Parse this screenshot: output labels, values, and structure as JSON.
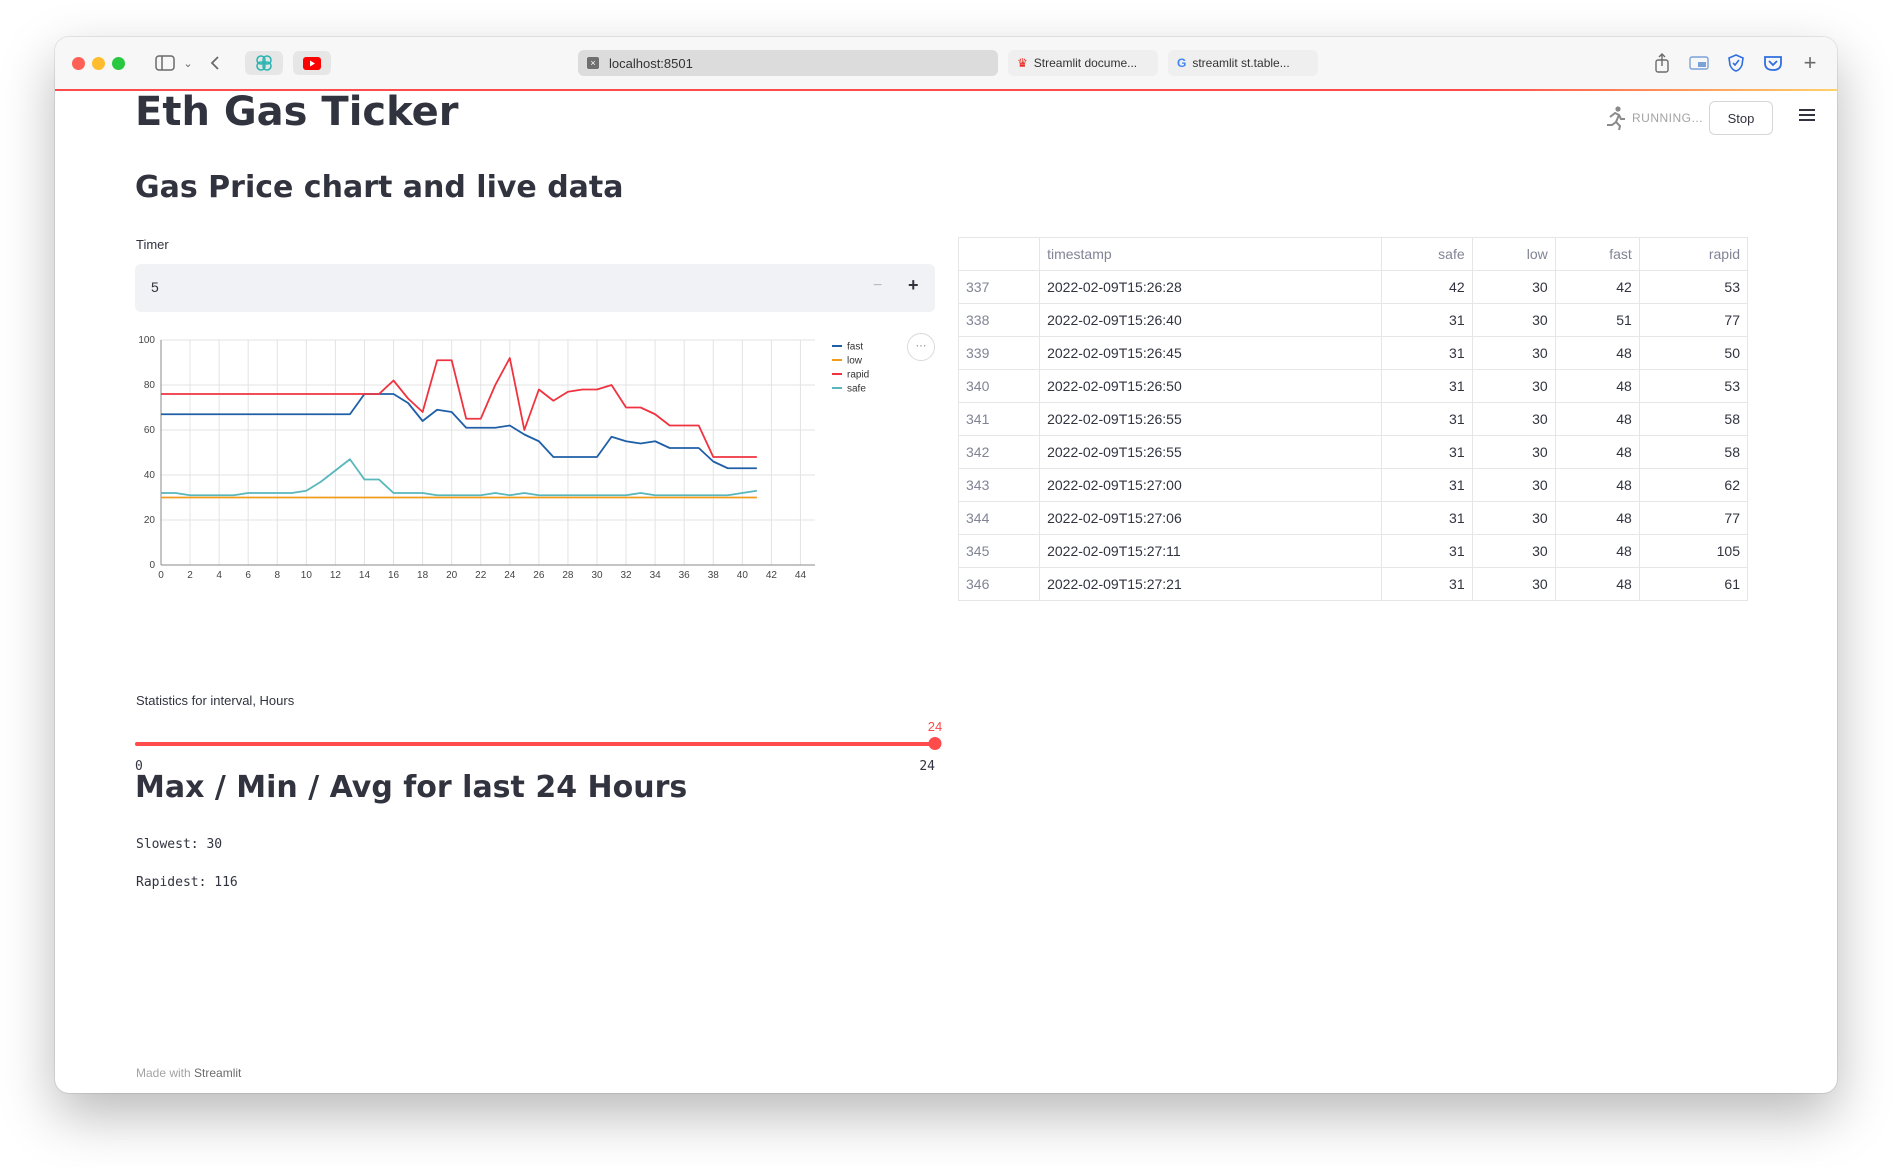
{
  "browser": {
    "url": "localhost:8501",
    "tabs": [
      {
        "label": "Streamlit docume..."
      },
      {
        "label": "streamlit st.table..."
      }
    ]
  },
  "app": {
    "title": "Eth Gas Ticker",
    "status": "RUNNING...",
    "stop_label": "Stop",
    "subtitle": "Gas Price chart and live data",
    "timer": {
      "label": "Timer",
      "value": "5",
      "minus": "−",
      "plus": "+"
    },
    "slider": {
      "label": "Statistics for interval, Hours",
      "value": "24",
      "min": "0",
      "max": "24",
      "fill": 1.0
    },
    "stats_heading": "Max / Min / Avg for last 24 Hours",
    "slowest": "Slowest: 30",
    "rapidest": "Rapidest: 116",
    "footer_prefix": "Made with",
    "footer_brand": "Streamlit",
    "accent": "#ff4b4b"
  },
  "table": {
    "columns": [
      "",
      "timestamp",
      "safe",
      "low",
      "fast",
      "rapid"
    ],
    "rows": [
      [
        "337",
        "2022-02-09T15:26:28",
        "42",
        "30",
        "42",
        "53"
      ],
      [
        "338",
        "2022-02-09T15:26:40",
        "31",
        "30",
        "51",
        "77"
      ],
      [
        "339",
        "2022-02-09T15:26:45",
        "31",
        "30",
        "48",
        "50"
      ],
      [
        "340",
        "2022-02-09T15:26:50",
        "31",
        "30",
        "48",
        "53"
      ],
      [
        "341",
        "2022-02-09T15:26:55",
        "31",
        "30",
        "48",
        "58"
      ],
      [
        "342",
        "2022-02-09T15:26:55",
        "31",
        "30",
        "48",
        "58"
      ],
      [
        "343",
        "2022-02-09T15:27:00",
        "31",
        "30",
        "48",
        "62"
      ],
      [
        "344",
        "2022-02-09T15:27:06",
        "31",
        "30",
        "48",
        "77"
      ],
      [
        "345",
        "2022-02-09T15:27:11",
        "31",
        "30",
        "48",
        "105"
      ],
      [
        "346",
        "2022-02-09T15:27:21",
        "31",
        "30",
        "48",
        "61"
      ]
    ]
  },
  "chart_data": {
    "type": "line",
    "xlim": [
      0,
      45
    ],
    "ylim": [
      0,
      100
    ],
    "xticks": [
      0,
      2,
      4,
      6,
      8,
      10,
      12,
      14,
      16,
      18,
      20,
      22,
      24,
      26,
      28,
      30,
      32,
      34,
      36,
      38,
      40,
      42,
      44
    ],
    "yticks": [
      0,
      20,
      40,
      60,
      80,
      100
    ],
    "grid": true,
    "legend_position": "top-right",
    "x": [
      0,
      1,
      2,
      3,
      4,
      5,
      6,
      7,
      8,
      9,
      10,
      11,
      12,
      13,
      14,
      15,
      16,
      17,
      18,
      19,
      20,
      21,
      22,
      23,
      24,
      25,
      26,
      27,
      28,
      29,
      30,
      31,
      32,
      33,
      34,
      35,
      36,
      37,
      38,
      39,
      40,
      41
    ],
    "series": [
      {
        "name": "fast",
        "color": "#1f5fa8",
        "values": [
          67,
          67,
          67,
          67,
          67,
          67,
          67,
          67,
          67,
          67,
          67,
          67,
          67,
          67,
          76,
          76,
          76,
          72,
          64,
          69,
          68,
          61,
          61,
          61,
          62,
          58,
          55,
          48,
          48,
          48,
          48,
          57,
          55,
          54,
          55,
          52,
          52,
          52,
          46,
          43,
          43,
          43
        ]
      },
      {
        "name": "low",
        "color": "#f29b1d",
        "values": [
          30,
          30,
          30,
          30,
          30,
          30,
          30,
          30,
          30,
          30,
          30,
          30,
          30,
          30,
          30,
          30,
          30,
          30,
          30,
          30,
          30,
          30,
          30,
          30,
          30,
          30,
          30,
          30,
          30,
          30,
          30,
          30,
          30,
          30,
          30,
          30,
          30,
          30,
          30,
          30,
          30,
          30
        ]
      },
      {
        "name": "rapid",
        "color": "#ef3440",
        "values": [
          76,
          76,
          76,
          76,
          76,
          76,
          76,
          76,
          76,
          76,
          76,
          76,
          76,
          76,
          76,
          76,
          82,
          74,
          68,
          91,
          91,
          65,
          65,
          80,
          92,
          60,
          78,
          73,
          77,
          78,
          78,
          80,
          70,
          70,
          67,
          62,
          62,
          62,
          48,
          48,
          48,
          48
        ]
      },
      {
        "name": "safe",
        "color": "#58b7bd",
        "values": [
          32,
          32,
          31,
          31,
          31,
          31,
          32,
          32,
          32,
          32,
          33,
          37,
          42,
          47,
          38,
          38,
          32,
          32,
          32,
          31,
          31,
          31,
          31,
          32,
          31,
          32,
          31,
          31,
          31,
          31,
          31,
          31,
          31,
          32,
          31,
          31,
          31,
          31,
          31,
          31,
          32,
          33
        ]
      }
    ]
  }
}
